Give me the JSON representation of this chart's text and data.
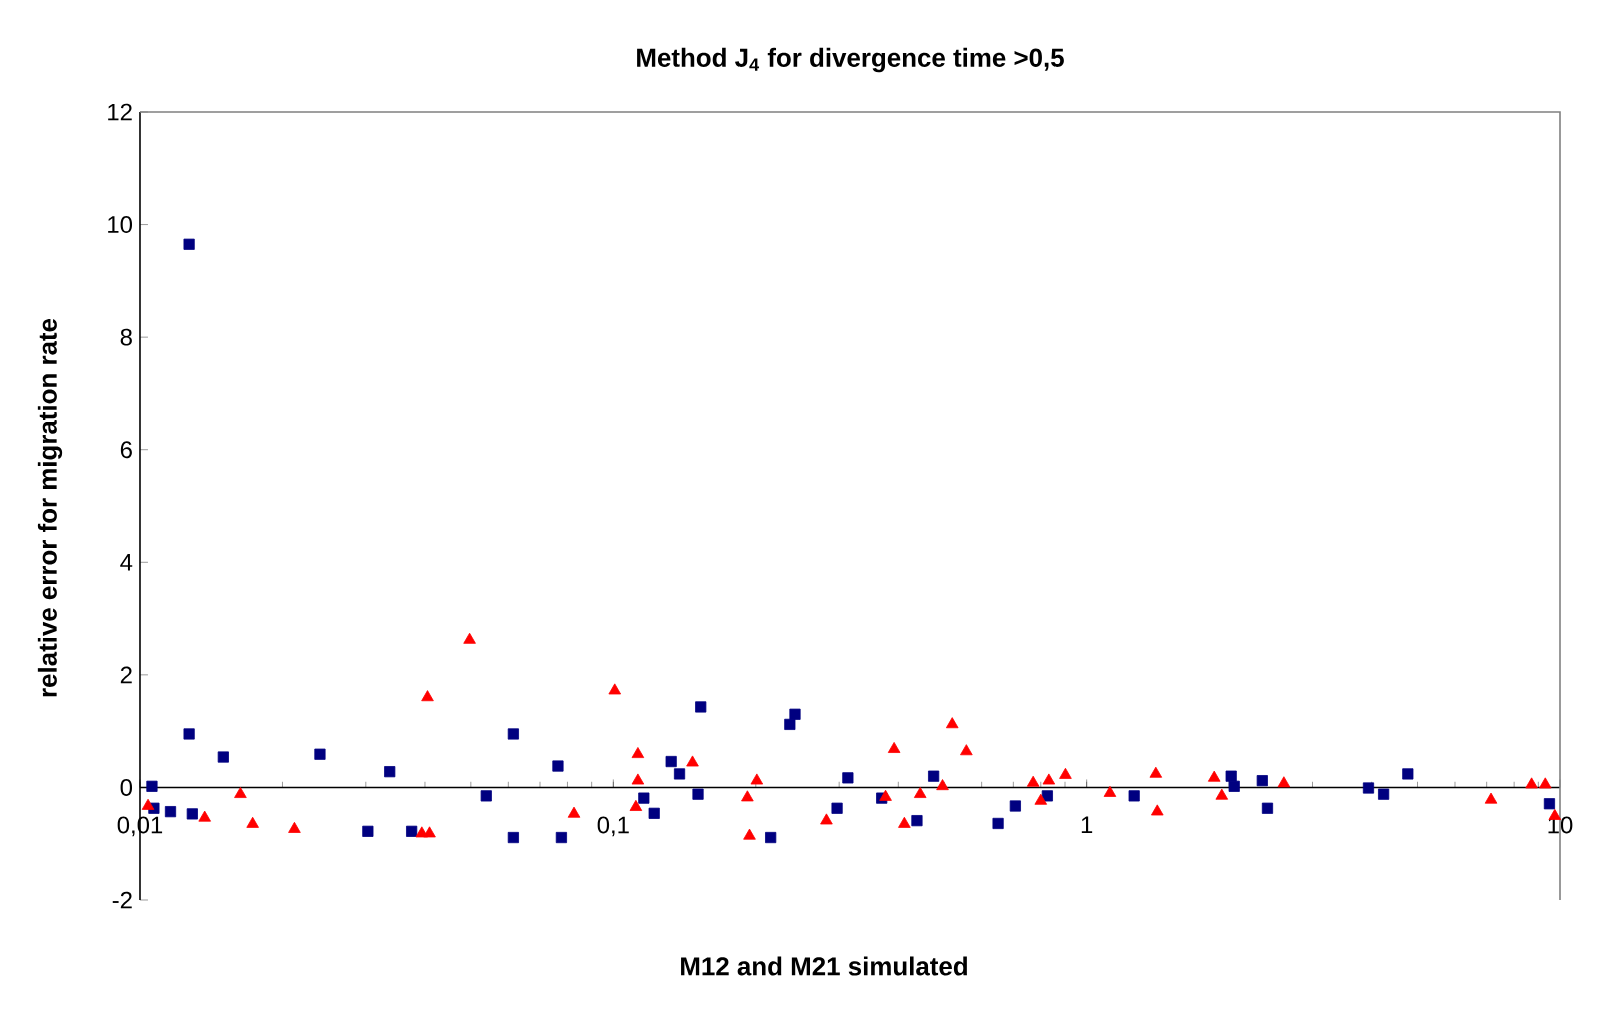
{
  "chart_data": {
    "type": "scatter",
    "title": "Method J$_{4}$ for divergence time >0,5",
    "xlabel": "M12 and M21 simulated",
    "ylabel": "relative error for migration rate",
    "log": "x",
    "xlim": [
      0.01,
      10
    ],
    "ylim": [
      -2,
      12
    ],
    "xticks": [
      {
        "value": 0.01,
        "label": "0,01"
      },
      {
        "value": 0.1,
        "label": "0,1"
      },
      1,
      10
    ],
    "yticks": [
      -2,
      0,
      2,
      4,
      6,
      8,
      10,
      12
    ],
    "series": [
      {
        "color": "#000080",
        "marker": "square",
        "x": [
          0.0106,
          0.0107,
          0.0116,
          0.0129,
          0.0127,
          0.0127,
          0.015,
          0.024,
          0.0337,
          0.0303,
          0.0375,
          0.0539,
          0.0615,
          0.0615,
          0.0764,
          0.0777,
          0.116,
          0.122,
          0.1325,
          0.138,
          0.153,
          0.151,
          0.215,
          0.236,
          0.242,
          0.297,
          0.313,
          0.369,
          0.438,
          0.475,
          0.65,
          0.707,
          0.826,
          1.26,
          2.02,
          2.05,
          2.35,
          2.41,
          3.94,
          4.24,
          4.77,
          9.5
        ],
        "values": [
          0.02,
          -0.37,
          -0.43,
          -0.47,
          0.95,
          9.65,
          0.54,
          0.59,
          0.28,
          -0.78,
          -0.78,
          -0.15,
          0.95,
          -0.89,
          0.38,
          -0.89,
          -0.19,
          -0.46,
          0.46,
          0.24,
          1.43,
          -0.12,
          -0.89,
          1.12,
          1.3,
          -0.37,
          0.17,
          -0.19,
          -0.59,
          0.2,
          -0.64,
          -0.33,
          -0.15,
          -0.15,
          0.2,
          0.02,
          0.12,
          -0.37,
          -0.01,
          -0.12,
          0.24,
          -0.29
        ]
      },
      {
        "color": "#ff0000",
        "marker": "triangle",
        "x": [
          0.0104,
          0.0137,
          0.0163,
          0.0173,
          0.0212,
          0.0405,
          0.0394,
          0.0409,
          0.0497,
          0.0826,
          0.1007,
          0.1127,
          0.1127,
          0.1116,
          0.147,
          0.192,
          0.201,
          0.194,
          0.282,
          0.392,
          0.376,
          0.412,
          0.445,
          0.496,
          0.52,
          0.557,
          0.771,
          0.8,
          0.832,
          0.902,
          1.12,
          1.4,
          1.41,
          1.86,
          1.93,
          2.61,
          7.15,
          8.71,
          9.31,
          9.75
        ],
        "values": [
          -0.33,
          -0.54,
          -0.12,
          -0.65,
          -0.74,
          1.6,
          -0.82,
          -0.82,
          2.62,
          -0.47,
          1.72,
          0.59,
          0.12,
          -0.35,
          0.44,
          -0.18,
          0.12,
          -0.86,
          -0.59,
          0.68,
          -0.17,
          -0.65,
          -0.12,
          0.02,
          1.12,
          0.64,
          0.08,
          -0.24,
          0.12,
          0.22,
          -0.1,
          0.24,
          -0.43,
          0.17,
          -0.15,
          0.07,
          -0.22,
          0.05,
          0.05,
          -0.51
        ]
      }
    ]
  }
}
